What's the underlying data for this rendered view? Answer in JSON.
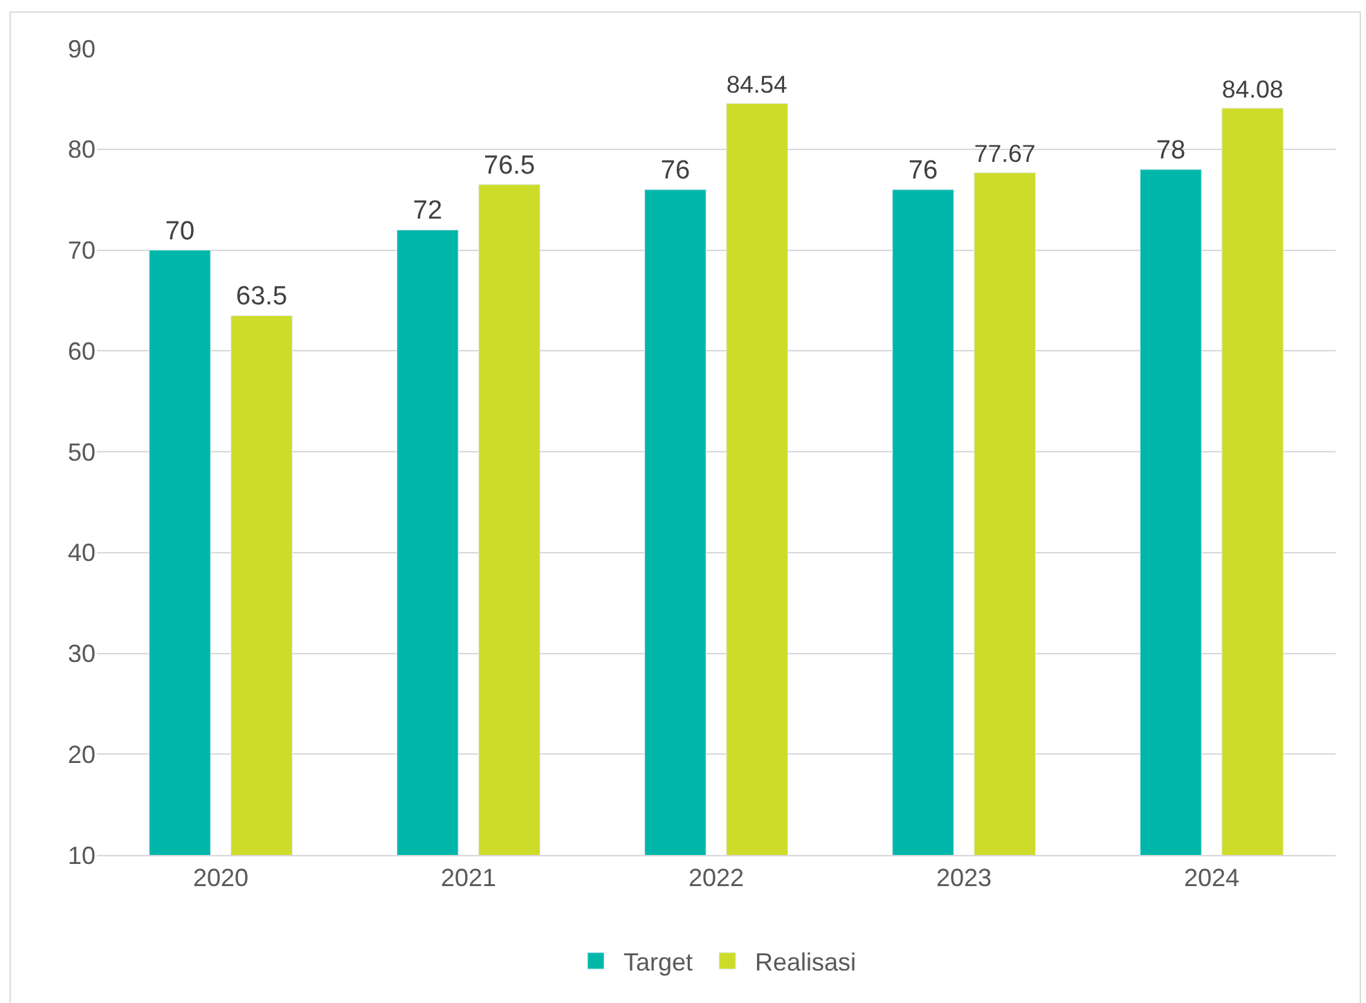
{
  "chart_data": {
    "type": "bar",
    "categories": [
      "2020",
      "2021",
      "2022",
      "2023",
      "2024"
    ],
    "series": [
      {
        "name": "Target",
        "color": "#00b8aa",
        "values": [
          70,
          72,
          76,
          76,
          78
        ]
      },
      {
        "name": "Realisasi",
        "color": "#cddc29",
        "values": [
          63.5,
          76.5,
          84.54,
          77.67,
          84.08
        ]
      }
    ],
    "ylim": [
      10,
      90
    ],
    "yticks": [
      10,
      20,
      30,
      40,
      50,
      60,
      70,
      80,
      90
    ],
    "grid": "y",
    "legend": "bottom",
    "data_labels": true
  }
}
